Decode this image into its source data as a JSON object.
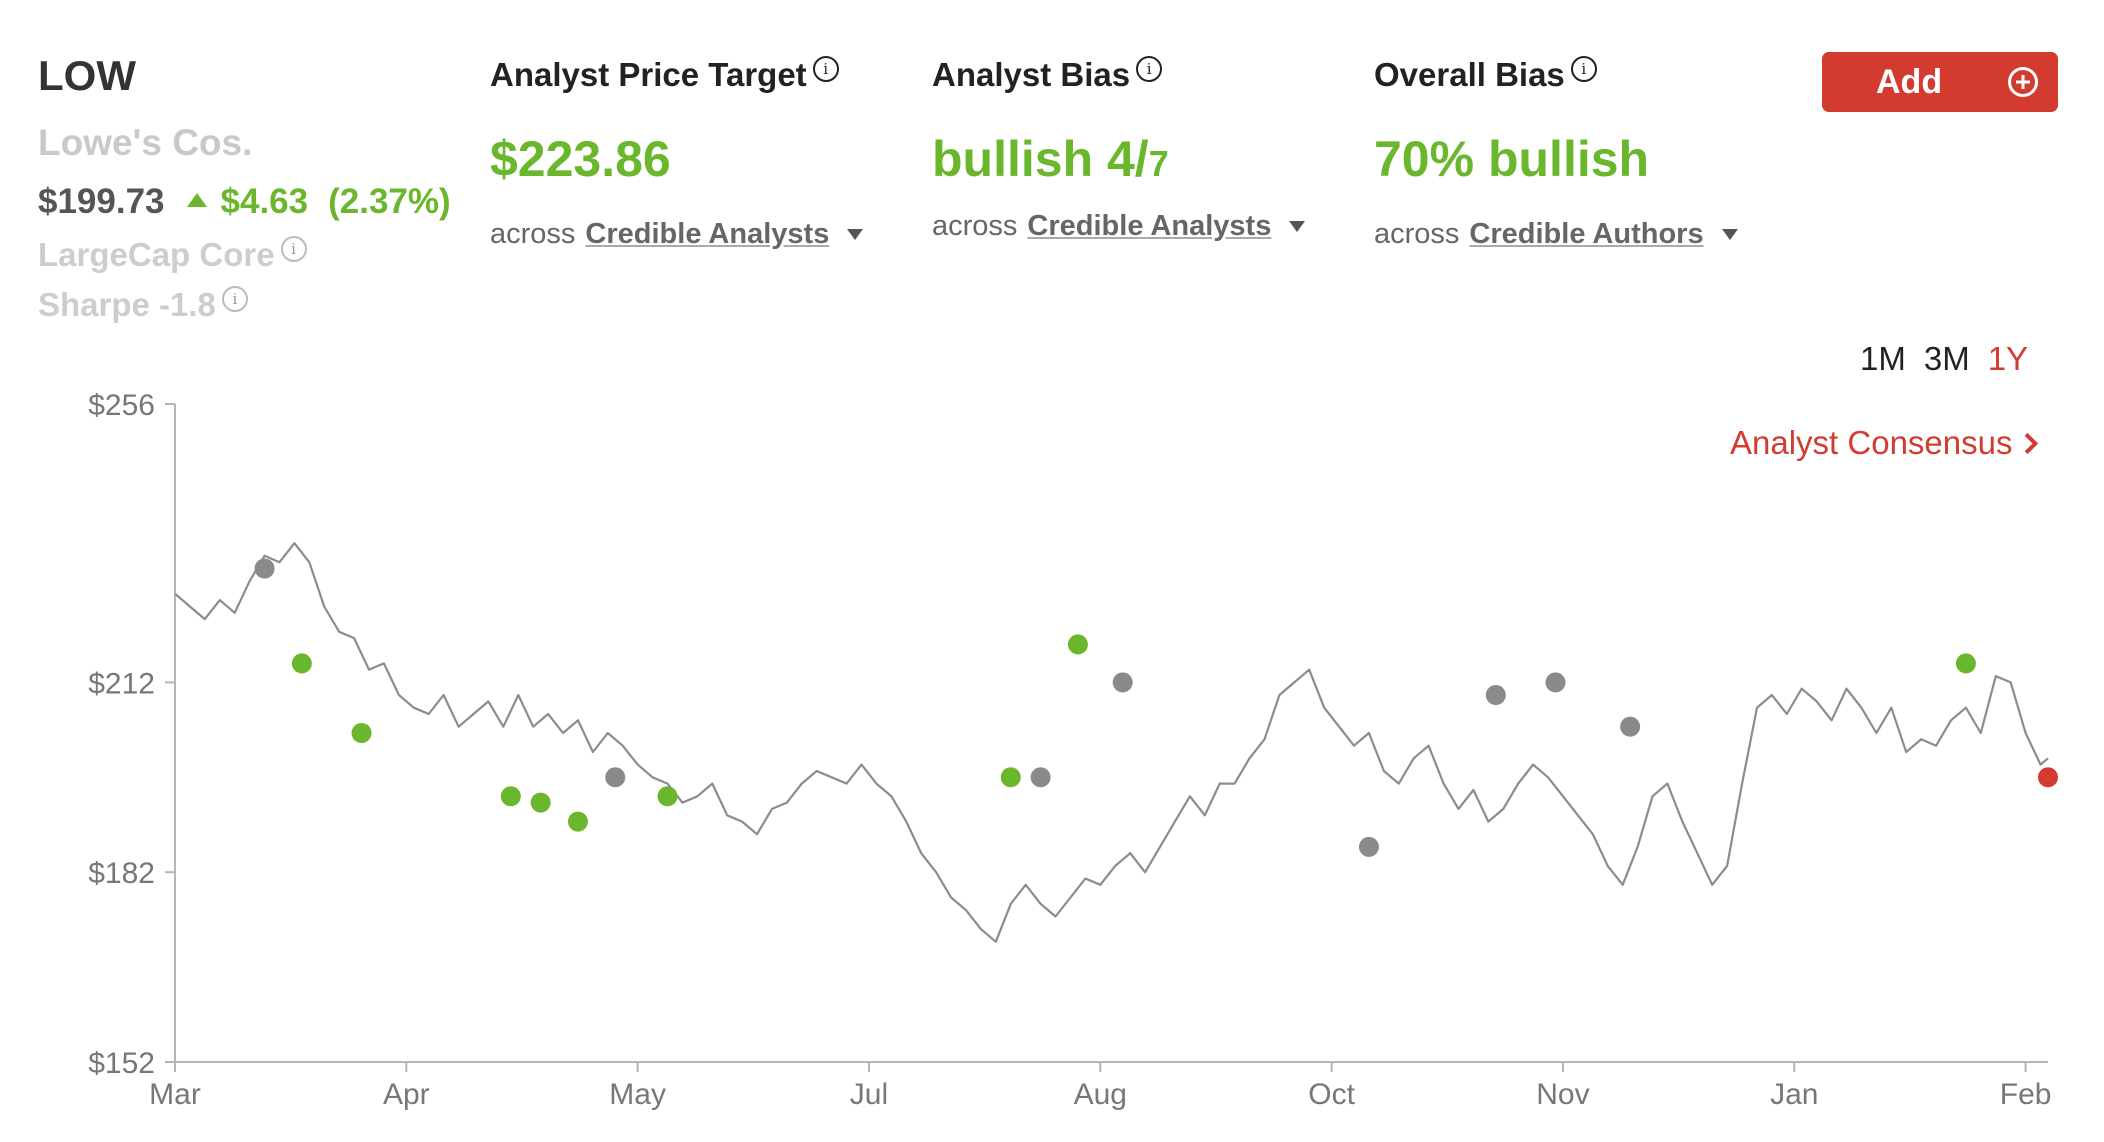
{
  "stock": {
    "ticker": "LOW",
    "company": "Lowe's Cos.",
    "price": "$199.73",
    "change": "$4.63",
    "change_pct": "(2.37%)",
    "cap_label": "LargeCap Core",
    "sharpe_label": "Sharpe -1.8"
  },
  "price_target": {
    "title": "Analyst Price Target",
    "value": "$223.86",
    "across": "across",
    "link": "Credible Analysts"
  },
  "analyst_bias": {
    "title": "Analyst Bias",
    "value_main": "bullish 4/",
    "value_sub": "7",
    "across": "across",
    "link": "Credible Analysts"
  },
  "overall_bias": {
    "title": "Overall Bias",
    "value": "70% bullish",
    "across": "across",
    "link": "Credible Authors"
  },
  "actions": {
    "add_label": "Add",
    "consensus_label": "Analyst Consensus"
  },
  "ranges": {
    "r1m": "1M",
    "r3m": "3M",
    "r1y": "1Y"
  },
  "colors": {
    "accent_red": "#d33b31",
    "bull_green": "#6ab72e",
    "neutral_grey": "#8a8a8a",
    "line": "#8c8c8c"
  },
  "chart_data": {
    "type": "line",
    "title": "",
    "xlabel": "",
    "ylabel": "",
    "ylim": [
      152,
      256
    ],
    "y_ticks": [
      {
        "value": 256,
        "label": "$256"
      },
      {
        "value": 212,
        "label": "$212"
      },
      {
        "value": 182,
        "label": "$182"
      },
      {
        "value": 152,
        "label": "$152"
      }
    ],
    "x_ticks": [
      {
        "t": 0,
        "label": "Mar"
      },
      {
        "t": 31,
        "label": "Apr"
      },
      {
        "t": 62,
        "label": "May"
      },
      {
        "t": 93,
        "label": "Jul"
      },
      {
        "t": 124,
        "label": "Aug"
      },
      {
        "t": 155,
        "label": "Oct"
      },
      {
        "t": 186,
        "label": "Nov"
      },
      {
        "t": 217,
        "label": "Jan"
      },
      {
        "t": 248,
        "label": "Feb"
      }
    ],
    "x_range": [
      0,
      251
    ],
    "series": [
      {
        "name": "LOW price",
        "points": [
          [
            0,
            226
          ],
          [
            2,
            224
          ],
          [
            4,
            222
          ],
          [
            6,
            225
          ],
          [
            8,
            223
          ],
          [
            10,
            228
          ],
          [
            12,
            232
          ],
          [
            14,
            231
          ],
          [
            16,
            234
          ],
          [
            18,
            231
          ],
          [
            20,
            224
          ],
          [
            22,
            220
          ],
          [
            24,
            219
          ],
          [
            26,
            214
          ],
          [
            28,
            215
          ],
          [
            30,
            210
          ],
          [
            32,
            208
          ],
          [
            34,
            207
          ],
          [
            36,
            210
          ],
          [
            38,
            205
          ],
          [
            40,
            207
          ],
          [
            42,
            209
          ],
          [
            44,
            205
          ],
          [
            46,
            210
          ],
          [
            48,
            205
          ],
          [
            50,
            207
          ],
          [
            52,
            204
          ],
          [
            54,
            206
          ],
          [
            56,
            201
          ],
          [
            58,
            204
          ],
          [
            60,
            202
          ],
          [
            62,
            199
          ],
          [
            64,
            197
          ],
          [
            66,
            196
          ],
          [
            68,
            193
          ],
          [
            70,
            194
          ],
          [
            72,
            196
          ],
          [
            74,
            191
          ],
          [
            76,
            190
          ],
          [
            78,
            188
          ],
          [
            80,
            192
          ],
          [
            82,
            193
          ],
          [
            84,
            196
          ],
          [
            86,
            198
          ],
          [
            88,
            197
          ],
          [
            90,
            196
          ],
          [
            92,
            199
          ],
          [
            94,
            196
          ],
          [
            96,
            194
          ],
          [
            98,
            190
          ],
          [
            100,
            185
          ],
          [
            102,
            182
          ],
          [
            104,
            178
          ],
          [
            106,
            176
          ],
          [
            108,
            173
          ],
          [
            110,
            171
          ],
          [
            112,
            177
          ],
          [
            114,
            180
          ],
          [
            116,
            177
          ],
          [
            118,
            175
          ],
          [
            120,
            178
          ],
          [
            122,
            181
          ],
          [
            124,
            180
          ],
          [
            126,
            183
          ],
          [
            128,
            185
          ],
          [
            130,
            182
          ],
          [
            132,
            186
          ],
          [
            134,
            190
          ],
          [
            136,
            194
          ],
          [
            138,
            191
          ],
          [
            140,
            196
          ],
          [
            142,
            196
          ],
          [
            144,
            200
          ],
          [
            146,
            203
          ],
          [
            148,
            210
          ],
          [
            150,
            212
          ],
          [
            152,
            214
          ],
          [
            154,
            208
          ],
          [
            156,
            205
          ],
          [
            158,
            202
          ],
          [
            160,
            204
          ],
          [
            162,
            198
          ],
          [
            164,
            196
          ],
          [
            166,
            200
          ],
          [
            168,
            202
          ],
          [
            170,
            196
          ],
          [
            172,
            192
          ],
          [
            174,
            195
          ],
          [
            176,
            190
          ],
          [
            178,
            192
          ],
          [
            180,
            196
          ],
          [
            182,
            199
          ],
          [
            184,
            197
          ],
          [
            186,
            194
          ],
          [
            188,
            191
          ],
          [
            190,
            188
          ],
          [
            192,
            183
          ],
          [
            194,
            180
          ],
          [
            196,
            186
          ],
          [
            198,
            194
          ],
          [
            200,
            196
          ],
          [
            202,
            190
          ],
          [
            204,
            185
          ],
          [
            206,
            180
          ],
          [
            208,
            183
          ],
          [
            210,
            196
          ],
          [
            212,
            208
          ],
          [
            214,
            210
          ],
          [
            216,
            207
          ],
          [
            218,
            211
          ],
          [
            220,
            209
          ],
          [
            222,
            206
          ],
          [
            224,
            211
          ],
          [
            226,
            208
          ],
          [
            228,
            204
          ],
          [
            230,
            208
          ],
          [
            232,
            201
          ],
          [
            234,
            203
          ],
          [
            236,
            202
          ],
          [
            238,
            206
          ],
          [
            240,
            208
          ],
          [
            242,
            204
          ],
          [
            244,
            213
          ],
          [
            246,
            212
          ],
          [
            248,
            204
          ],
          [
            250,
            199
          ],
          [
            251,
            200
          ]
        ]
      }
    ],
    "markers": [
      {
        "t": 12,
        "value": 230,
        "type": "neutral"
      },
      {
        "t": 17,
        "value": 215,
        "type": "bullish"
      },
      {
        "t": 25,
        "value": 204,
        "type": "bullish"
      },
      {
        "t": 45,
        "value": 194,
        "type": "bullish"
      },
      {
        "t": 49,
        "value": 193,
        "type": "bullish"
      },
      {
        "t": 54,
        "value": 190,
        "type": "bullish"
      },
      {
        "t": 59,
        "value": 197,
        "type": "neutral"
      },
      {
        "t": 66,
        "value": 194,
        "type": "bullish"
      },
      {
        "t": 112,
        "value": 197,
        "type": "bullish"
      },
      {
        "t": 116,
        "value": 197,
        "type": "neutral"
      },
      {
        "t": 121,
        "value": 218,
        "type": "bullish"
      },
      {
        "t": 127,
        "value": 212,
        "type": "neutral"
      },
      {
        "t": 160,
        "value": 186,
        "type": "neutral"
      },
      {
        "t": 177,
        "value": 210,
        "type": "neutral"
      },
      {
        "t": 185,
        "value": 212,
        "type": "neutral"
      },
      {
        "t": 195,
        "value": 205,
        "type": "neutral"
      },
      {
        "t": 240,
        "value": 215,
        "type": "bullish"
      },
      {
        "t": 251,
        "value": 197,
        "type": "current"
      }
    ]
  }
}
